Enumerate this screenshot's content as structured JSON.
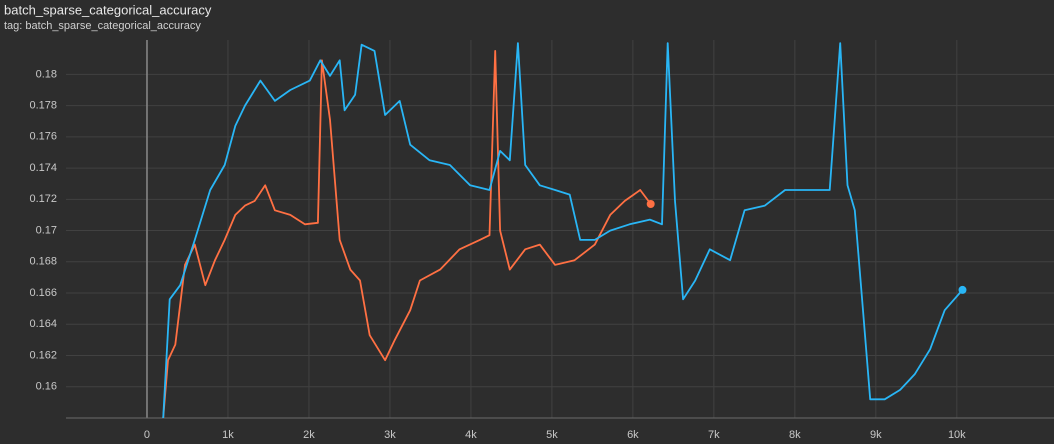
{
  "chart_data": {
    "type": "line",
    "title": "batch_sparse_categorical_accuracy",
    "subtitle": "tag: batch_sparse_categorical_accuracy",
    "xlim": [
      -1000,
      11200
    ],
    "ylim": [
      0.158,
      0.1822
    ],
    "xticks": [
      0,
      {
        "value": 1000,
        "label": "1k"
      },
      {
        "value": 2000,
        "label": "2k"
      },
      {
        "value": 3000,
        "label": "3k"
      },
      {
        "value": 4000,
        "label": "4k"
      },
      {
        "value": 5000,
        "label": "5k"
      },
      {
        "value": 6000,
        "label": "6k"
      },
      {
        "value": 7000,
        "label": "7k"
      },
      {
        "value": 8000,
        "label": "8k"
      },
      {
        "value": 9000,
        "label": "9k"
      },
      {
        "value": 10000,
        "label": "10k"
      }
    ],
    "yticks": [
      0.16,
      0.162,
      0.164,
      0.166,
      0.168,
      0.17,
      0.172,
      0.174,
      0.176,
      0.178,
      0.18
    ],
    "grid": true,
    "series": [
      {
        "color": "#ff7043",
        "x": [
          200,
          260,
          350,
          470,
          590,
          720,
          840,
          960,
          1090,
          1210,
          1330,
          1460,
          1580,
          1770,
          1950,
          2110,
          2160,
          2260,
          2380,
          2510,
          2630,
          2750,
          2940,
          3060,
          3250,
          3370,
          3620,
          3860,
          4110,
          4230,
          4300,
          4360,
          4480,
          4670,
          4850,
          5040,
          5280,
          5530,
          5720,
          5900,
          6090,
          6220
        ],
        "values": [
          0.158,
          0.1617,
          0.1627,
          0.1678,
          0.1691,
          0.1665,
          0.1681,
          0.1694,
          0.171,
          0.1716,
          0.1719,
          0.1729,
          0.1713,
          0.171,
          0.1704,
          0.1705,
          0.1809,
          0.1771,
          0.1694,
          0.1675,
          0.1668,
          0.1633,
          0.1617,
          0.163,
          0.1649,
          0.1668,
          0.1675,
          0.1688,
          0.1694,
          0.1697,
          0.1815,
          0.17,
          0.1675,
          0.1688,
          0.1691,
          0.1678,
          0.1681,
          0.1691,
          0.171,
          0.1719,
          0.1726,
          0.1717
        ]
      },
      {
        "color": "#29b6f6",
        "x": [
          200,
          280,
          410,
          590,
          780,
          960,
          1090,
          1210,
          1400,
          1580,
          1770,
          2010,
          2140,
          2260,
          2380,
          2440,
          2570,
          2650,
          2810,
          2940,
          3120,
          3250,
          3490,
          3740,
          3990,
          4230,
          4360,
          4480,
          4580,
          4670,
          4850,
          5040,
          5220,
          5350,
          5530,
          5720,
          5960,
          6210,
          6360,
          6430,
          6520,
          6620,
          6770,
          6950,
          7200,
          7380,
          7630,
          7880,
          8120,
          8430,
          8560,
          8650,
          8740,
          8830,
          8930,
          9110,
          9300,
          9480,
          9670,
          9850,
          10070
        ],
        "values": [
          0.158,
          0.1656,
          0.1665,
          0.1694,
          0.1726,
          0.1742,
          0.1767,
          0.178,
          0.1796,
          0.1783,
          0.179,
          0.1796,
          0.1809,
          0.1799,
          0.1809,
          0.1777,
          0.1787,
          0.1819,
          0.1815,
          0.1774,
          0.1783,
          0.1755,
          0.1745,
          0.1742,
          0.1729,
          0.1726,
          0.1751,
          0.1745,
          0.182,
          0.1742,
          0.1729,
          0.1726,
          0.1723,
          0.1694,
          0.1694,
          0.17,
          0.1704,
          0.1707,
          0.1704,
          0.182,
          0.1719,
          0.1656,
          0.1668,
          0.1688,
          0.1681,
          0.1713,
          0.1716,
          0.1726,
          0.1726,
          0.1726,
          0.182,
          0.1729,
          0.1713,
          0.1656,
          0.1592,
          0.1592,
          0.1598,
          0.1608,
          0.1624,
          0.1649,
          0.1662
        ]
      }
    ]
  }
}
